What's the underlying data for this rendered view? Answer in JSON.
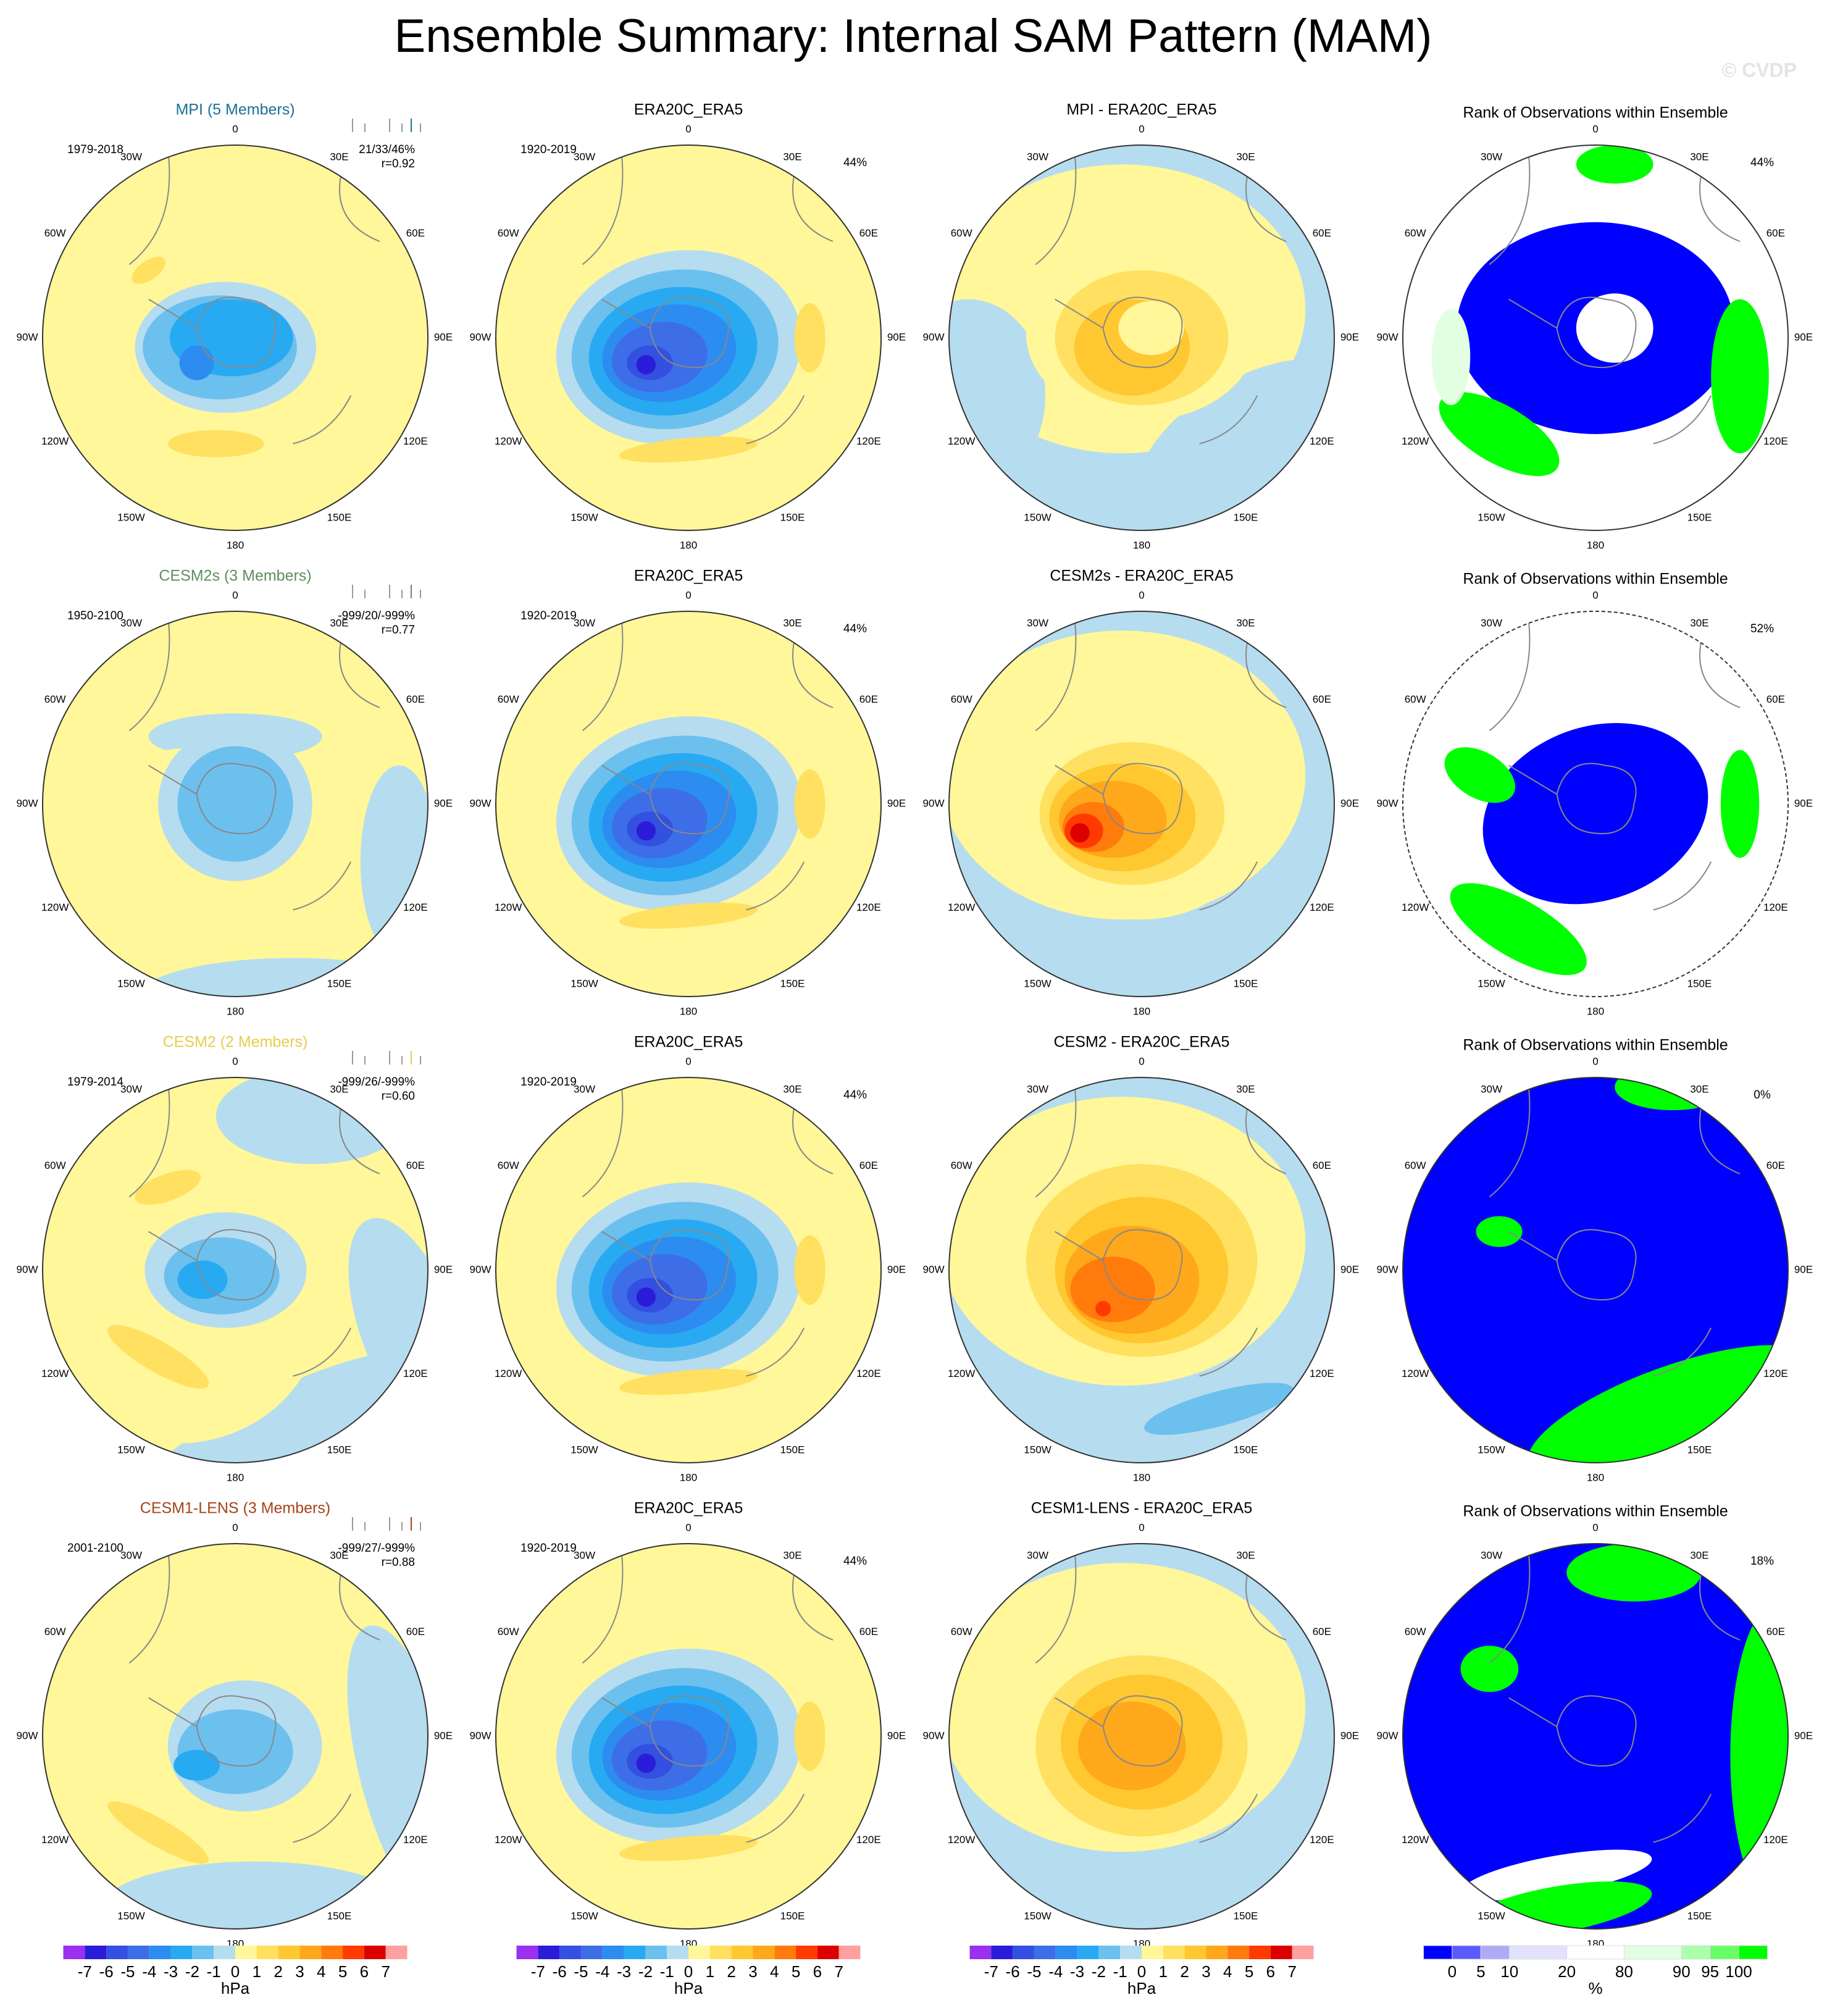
{
  "title": "Ensemble Summary: Internal SAM Pattern (MAM)",
  "credit": "© CVDP",
  "longitude_labels": [
    "0",
    "30E",
    "60E",
    "90E",
    "120E",
    "150E",
    "180",
    "150W",
    "120W",
    "90W",
    "60W",
    "30W"
  ],
  "colorbars": {
    "hpa": {
      "colors": [
        "#9b30f0",
        "#2a1cd8",
        "#3350e0",
        "#3d6ee8",
        "#2d8cf0",
        "#28aaf2",
        "#6cc0ee",
        "#b6dcf0",
        "#fff799",
        "#ffe060",
        "#ffc830",
        "#ffa81c",
        "#ff7c0c",
        "#ff3a00",
        "#dc0000",
        "#ffa0a0"
      ],
      "ticks": [
        -7,
        -6,
        -5,
        -4,
        -3,
        -2,
        -1,
        0,
        1,
        2,
        3,
        4,
        5,
        6,
        7
      ],
      "unit": "hPa"
    },
    "rank": {
      "colors": [
        "#0000ff",
        "#5a5aff",
        "#acacf6",
        "#e2e2ff",
        "#ffffff",
        "#e2ffe2",
        "#acffac",
        "#66ff66",
        "#00ff00"
      ],
      "ticks": [
        0,
        5,
        10,
        20,
        80,
        90,
        95,
        100
      ],
      "unit": "%"
    }
  },
  "rows": [
    {
      "model": {
        "title": "MPI (5 Members)",
        "color": "#1d6f96",
        "years": "1979-2018",
        "stats": [
          "21/33/46%",
          "r=0.92"
        ]
      },
      "observation": {
        "title": "ERA20C_ERA5",
        "years": "1920-2019",
        "percent": "44%"
      },
      "difference": {
        "title": "MPI - ERA20C_ERA5"
      },
      "rank": {
        "title": "Rank of Observations within Ensemble",
        "percent": "44%"
      }
    },
    {
      "model": {
        "title": "CESM2s (3 Members)",
        "color": "#5f8f5f",
        "years": "1950-2100",
        "stats": [
          "-999/20/-999%",
          "r=0.77"
        ]
      },
      "observation": {
        "title": "ERA20C_ERA5",
        "years": "1920-2019",
        "percent": "44%"
      },
      "difference": {
        "title": "CESM2s - ERA20C_ERA5"
      },
      "rank": {
        "title": "Rank of Observations within Ensemble",
        "percent": "52%"
      }
    },
    {
      "model": {
        "title": "CESM2 (2 Members)",
        "color": "#e8cc50",
        "years": "1979-2014",
        "stats": [
          "-999/26/-999%",
          "r=0.60"
        ]
      },
      "observation": {
        "title": "ERA20C_ERA5",
        "years": "1920-2019",
        "percent": "44%"
      },
      "difference": {
        "title": "CESM2 - ERA20C_ERA5"
      },
      "rank": {
        "title": "Rank of Observations within Ensemble",
        "percent": "0%"
      }
    },
    {
      "model": {
        "title": "CESM1-LENS (3 Members)",
        "color": "#a4441a",
        "years": "2001-2100",
        "stats": [
          "-999/27/-999%",
          "r=0.88"
        ]
      },
      "observation": {
        "title": "ERA20C_ERA5",
        "years": "1920-2019",
        "percent": "44%"
      },
      "difference": {
        "title": "CESM1-LENS - ERA20C_ERA5"
      },
      "rank": {
        "title": "Rank of Observations within Ensemble",
        "percent": "18%"
      }
    }
  ]
}
